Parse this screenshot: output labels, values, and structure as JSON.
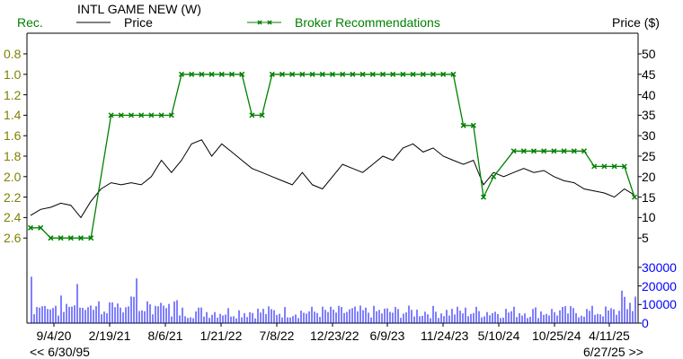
{
  "header": {
    "title": "INTL GAME NEW (W)",
    "left_axis_label": "Rec.",
    "right_axis_label": "Price ($)",
    "legend": [
      {
        "label": "Price",
        "color": "#000000",
        "marker": "line"
      },
      {
        "label": "Broker Recommendations",
        "color": "#008000",
        "marker": "line-x"
      }
    ]
  },
  "navigation": {
    "prev_label": "<< 6/30/95",
    "next_label": "6/27/25 >>"
  },
  "chart_data": {
    "type": "line",
    "title": "INTL GAME NEW (W)",
    "xlabel": "",
    "ylabel_left": "Rec.",
    "ylabel_right": "Price ($)",
    "x_ticks": [
      "9/4/20",
      "2/19/21",
      "8/6/21",
      "1/21/22",
      "7/8/22",
      "12/23/22",
      "6/9/23",
      "11/24/23",
      "5/10/24",
      "10/25/24",
      "4/11/25"
    ],
    "rec_axis": {
      "ticks": [
        "0.8",
        "1.0",
        "1.2",
        "1.4",
        "1.6",
        "1.8",
        "2.0",
        "2.2",
        "2.4",
        "2.6"
      ],
      "range": [
        0.8,
        2.6
      ],
      "inverted": true
    },
    "price_axis": {
      "ticks": [
        "50",
        "45",
        "40",
        "35",
        "30",
        "25",
        "20",
        "15",
        "10",
        "5"
      ],
      "range": [
        5,
        50
      ]
    },
    "volume_axis": {
      "ticks": [
        "30000",
        "20000",
        "10000",
        "0"
      ],
      "range": [
        0,
        30000
      ]
    },
    "grid": false,
    "legend_position": "top",
    "series": [
      {
        "name": "Broker Recommendations",
        "color": "#008000",
        "axis": "rec",
        "points": [
          [
            "2020-06",
            2.5
          ],
          [
            "2020-07",
            2.5
          ],
          [
            "2020-08",
            2.6
          ],
          [
            "2020-09",
            2.6
          ],
          [
            "2020-10",
            2.6
          ],
          [
            "2020-11",
            2.6
          ],
          [
            "2020-12",
            2.6
          ],
          [
            "2021-02",
            1.4
          ],
          [
            "2021-03",
            1.4
          ],
          [
            "2021-04",
            1.4
          ],
          [
            "2021-05",
            1.4
          ],
          [
            "2021-06",
            1.4
          ],
          [
            "2021-07",
            1.4
          ],
          [
            "2021-08",
            1.4
          ],
          [
            "2021-09",
            1.0
          ],
          [
            "2021-10",
            1.0
          ],
          [
            "2021-11",
            1.0
          ],
          [
            "2021-12",
            1.0
          ],
          [
            "2022-01",
            1.0
          ],
          [
            "2022-02",
            1.0
          ],
          [
            "2022-03",
            1.0
          ],
          [
            "2022-04",
            1.4
          ],
          [
            "2022-05",
            1.4
          ],
          [
            "2022-06",
            1.0
          ],
          [
            "2022-07",
            1.0
          ],
          [
            "2022-08",
            1.0
          ],
          [
            "2022-09",
            1.0
          ],
          [
            "2022-10",
            1.0
          ],
          [
            "2022-11",
            1.0
          ],
          [
            "2022-12",
            1.0
          ],
          [
            "2023-01",
            1.0
          ],
          [
            "2023-02",
            1.0
          ],
          [
            "2023-03",
            1.0
          ],
          [
            "2023-04",
            1.0
          ],
          [
            "2023-05",
            1.0
          ],
          [
            "2023-06",
            1.0
          ],
          [
            "2023-07",
            1.0
          ],
          [
            "2023-08",
            1.0
          ],
          [
            "2023-09",
            1.0
          ],
          [
            "2023-10",
            1.0
          ],
          [
            "2023-11",
            1.0
          ],
          [
            "2023-12",
            1.0
          ],
          [
            "2024-01",
            1.5
          ],
          [
            "2024-02",
            1.5
          ],
          [
            "2024-03",
            2.2
          ],
          [
            "2024-04",
            2.0
          ],
          [
            "2024-06",
            1.75
          ],
          [
            "2024-07",
            1.75
          ],
          [
            "2024-08",
            1.75
          ],
          [
            "2024-09",
            1.75
          ],
          [
            "2024-10",
            1.75
          ],
          [
            "2024-11",
            1.75
          ],
          [
            "2024-12",
            1.75
          ],
          [
            "2025-01",
            1.75
          ],
          [
            "2025-02",
            1.9
          ],
          [
            "2025-03",
            1.9
          ],
          [
            "2025-04",
            1.9
          ],
          [
            "2025-05",
            1.9
          ],
          [
            "2025-06",
            2.2
          ]
        ]
      },
      {
        "name": "Price",
        "color": "#000000",
        "axis": "price",
        "points": [
          [
            "2020-06",
            10.5
          ],
          [
            "2020-07",
            12
          ],
          [
            "2020-08",
            12.5
          ],
          [
            "2020-09",
            13.5
          ],
          [
            "2020-10",
            13
          ],
          [
            "2020-11",
            10
          ],
          [
            "2020-12",
            14
          ],
          [
            "2021-01",
            17
          ],
          [
            "2021-02",
            18.5
          ],
          [
            "2021-03",
            18
          ],
          [
            "2021-04",
            18.5
          ],
          [
            "2021-05",
            18
          ],
          [
            "2021-06",
            20
          ],
          [
            "2021-07",
            24
          ],
          [
            "2021-08",
            21
          ],
          [
            "2021-09",
            24
          ],
          [
            "2021-10",
            28
          ],
          [
            "2021-11",
            29
          ],
          [
            "2021-12",
            25
          ],
          [
            "2022-01",
            28
          ],
          [
            "2022-02",
            26
          ],
          [
            "2022-03",
            24
          ],
          [
            "2022-04",
            22
          ],
          [
            "2022-05",
            21
          ],
          [
            "2022-06",
            20
          ],
          [
            "2022-07",
            19
          ],
          [
            "2022-08",
            18
          ],
          [
            "2022-09",
            21
          ],
          [
            "2022-10",
            18
          ],
          [
            "2022-11",
            17
          ],
          [
            "2022-12",
            20
          ],
          [
            "2023-01",
            23
          ],
          [
            "2023-02",
            22
          ],
          [
            "2023-03",
            21
          ],
          [
            "2023-04",
            23
          ],
          [
            "2023-05",
            25
          ],
          [
            "2023-06",
            24
          ],
          [
            "2023-07",
            27
          ],
          [
            "2023-08",
            28
          ],
          [
            "2023-09",
            26
          ],
          [
            "2023-10",
            27
          ],
          [
            "2023-11",
            25
          ],
          [
            "2023-12",
            24
          ],
          [
            "2024-01",
            23
          ],
          [
            "2024-02",
            24
          ],
          [
            "2024-03",
            18
          ],
          [
            "2024-04",
            21
          ],
          [
            "2024-05",
            20
          ],
          [
            "2024-06",
            21
          ],
          [
            "2024-07",
            22
          ],
          [
            "2024-08",
            21
          ],
          [
            "2024-09",
            21.5
          ],
          [
            "2024-10",
            20
          ],
          [
            "2024-11",
            19
          ],
          [
            "2024-12",
            18.5
          ],
          [
            "2025-01",
            17
          ],
          [
            "2025-02",
            16.5
          ],
          [
            "2025-03",
            16
          ],
          [
            "2025-04",
            15
          ],
          [
            "2025-05",
            17
          ],
          [
            "2025-06",
            15.5
          ]
        ]
      },
      {
        "name": "Volume",
        "color": "#0000ff",
        "axis": "volume",
        "type": "bar",
        "note": "weekly volume bars, mostly 2000-12000 with peaks near 25000 (early 2021) and ~17000 (May 2025)"
      }
    ]
  },
  "colors": {
    "rec": "#008000",
    "price": "#000000",
    "volume": "#0000ff",
    "axis": "#000000",
    "left_tick_label": "#808000"
  }
}
